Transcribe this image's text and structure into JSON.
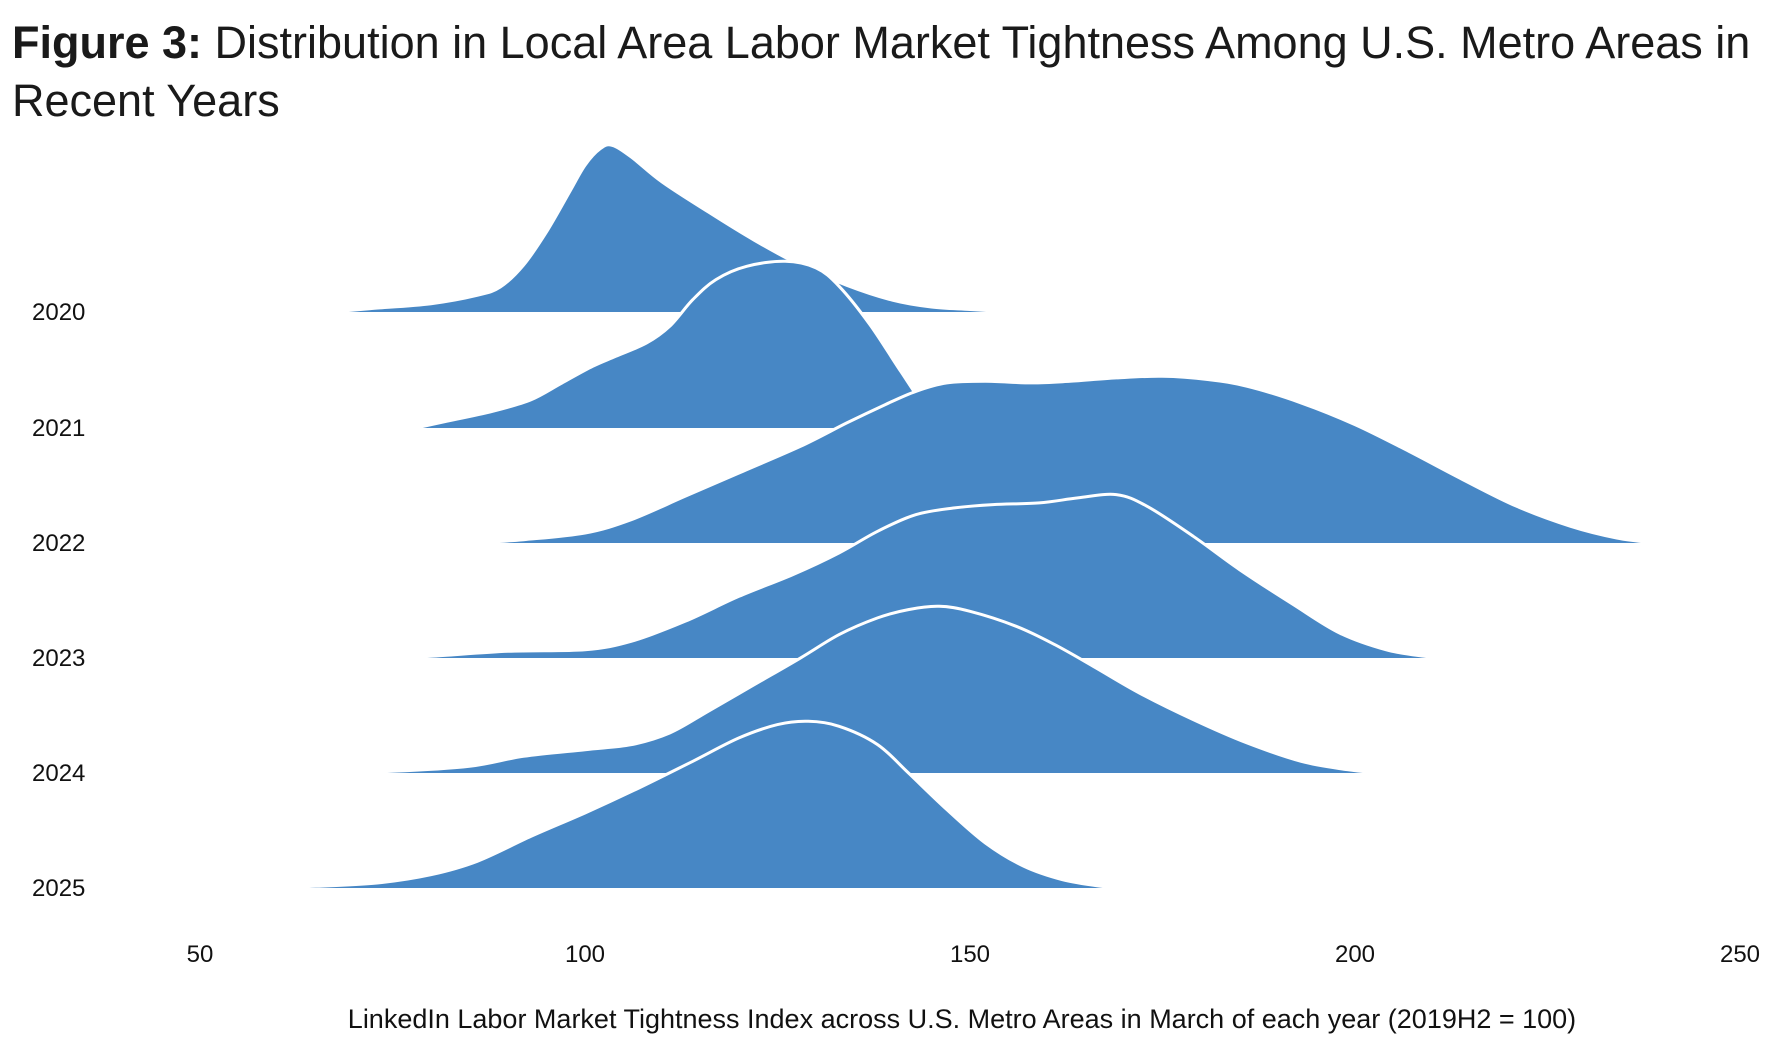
{
  "header": {
    "title_lead": "Figure 3:",
    "title_rest": " Distribution in Local Area Labor Market Tightness Among U.S. Metro Areas in Recent Years"
  },
  "chart_data": {
    "type": "ridgeline",
    "title": "Figure 3: Distribution in Local Area Labor Market Tightness Among U.S. Metro Areas in Recent Years",
    "xlabel": "LinkedIn Labor Market Tightness Index across U.S. Metro Areas in March of each year (2019H2 = 100)",
    "ylabel": "",
    "xlim": [
      50,
      250
    ],
    "x_ticks": [
      50,
      100,
      150,
      200,
      250
    ],
    "fill_color": "#4787c5",
    "outline_color": "#ffffff",
    "grid": false,
    "series": [
      {
        "name": "2020",
        "points": [
          [
            67,
            0
          ],
          [
            72,
            0.02
          ],
          [
            80,
            0.05
          ],
          [
            86,
            0.1
          ],
          [
            89,
            0.15
          ],
          [
            92,
            0.28
          ],
          [
            95,
            0.48
          ],
          [
            98,
            0.72
          ],
          [
            100,
            0.88
          ],
          [
            102,
            0.98
          ],
          [
            103.5,
            1.0
          ],
          [
            106,
            0.93
          ],
          [
            110,
            0.78
          ],
          [
            116,
            0.6
          ],
          [
            122,
            0.43
          ],
          [
            128,
            0.28
          ],
          [
            134,
            0.16
          ],
          [
            140,
            0.07
          ],
          [
            145,
            0.03
          ],
          [
            150,
            0.015
          ],
          [
            155,
            0
          ]
        ]
      },
      {
        "name": "2021",
        "points": [
          [
            78,
            0
          ],
          [
            82,
            0.04
          ],
          [
            88,
            0.1
          ],
          [
            93,
            0.17
          ],
          [
            97,
            0.27
          ],
          [
            101,
            0.37
          ],
          [
            104,
            0.43
          ],
          [
            108,
            0.51
          ],
          [
            111,
            0.61
          ],
          [
            114,
            0.77
          ],
          [
            117,
            0.89
          ],
          [
            121,
            0.97
          ],
          [
            126,
            1.0
          ],
          [
            130,
            0.96
          ],
          [
            133,
            0.85
          ],
          [
            137,
            0.62
          ],
          [
            141,
            0.34
          ],
          [
            144,
            0.14
          ],
          [
            147,
            0.02
          ],
          [
            148.5,
            0
          ]
        ]
      },
      {
        "name": "2022",
        "points": [
          [
            86,
            0
          ],
          [
            92,
            0.02
          ],
          [
            100,
            0.06
          ],
          [
            106,
            0.14
          ],
          [
            113,
            0.28
          ],
          [
            120,
            0.42
          ],
          [
            128,
            0.58
          ],
          [
            134,
            0.72
          ],
          [
            139,
            0.83
          ],
          [
            143,
            0.91
          ],
          [
            147,
            0.96
          ],
          [
            152,
            0.97
          ],
          [
            158,
            0.96
          ],
          [
            163,
            0.97
          ],
          [
            169,
            0.99
          ],
          [
            175,
            1.0
          ],
          [
            181,
            0.98
          ],
          [
            186,
            0.94
          ],
          [
            193,
            0.84
          ],
          [
            200,
            0.71
          ],
          [
            207,
            0.55
          ],
          [
            214,
            0.38
          ],
          [
            221,
            0.22
          ],
          [
            228,
            0.1
          ],
          [
            234,
            0.03
          ],
          [
            239,
            0
          ]
        ]
      },
      {
        "name": "2023",
        "points": [
          [
            74,
            0
          ],
          [
            80,
            0.01
          ],
          [
            90,
            0.04
          ],
          [
            100,
            0.05
          ],
          [
            106,
            0.1
          ],
          [
            113,
            0.22
          ],
          [
            120,
            0.37
          ],
          [
            127,
            0.5
          ],
          [
            133,
            0.63
          ],
          [
            138,
            0.76
          ],
          [
            143,
            0.86
          ],
          [
            148,
            0.9
          ],
          [
            153,
            0.92
          ],
          [
            159,
            0.93
          ],
          [
            164,
            0.96
          ],
          [
            169,
            0.98
          ],
          [
            173,
            0.91
          ],
          [
            179,
            0.73
          ],
          [
            185,
            0.53
          ],
          [
            192,
            0.32
          ],
          [
            198,
            0.15
          ],
          [
            204,
            0.05
          ],
          [
            209,
            0.01
          ],
          [
            212,
            0
          ]
        ]
      },
      {
        "name": "2024",
        "points": [
          [
            64,
            0
          ],
          [
            75,
            0.01
          ],
          [
            85,
            0.04
          ],
          [
            92,
            0.1
          ],
          [
            100,
            0.14
          ],
          [
            106,
            0.17
          ],
          [
            111,
            0.24
          ],
          [
            116,
            0.37
          ],
          [
            122,
            0.53
          ],
          [
            128,
            0.69
          ],
          [
            133,
            0.83
          ],
          [
            138,
            0.93
          ],
          [
            142,
            0.98
          ],
          [
            146,
            1.0
          ],
          [
            150,
            0.97
          ],
          [
            156,
            0.88
          ],
          [
            161,
            0.77
          ],
          [
            166,
            0.64
          ],
          [
            172,
            0.48
          ],
          [
            179,
            0.32
          ],
          [
            186,
            0.18
          ],
          [
            193,
            0.07
          ],
          [
            199,
            0.02
          ],
          [
            203,
            0
          ]
        ]
      },
      {
        "name": "2025",
        "points": [
          [
            57,
            0
          ],
          [
            65,
            0.01
          ],
          [
            73,
            0.03
          ],
          [
            80,
            0.08
          ],
          [
            86,
            0.16
          ],
          [
            93,
            0.31
          ],
          [
            100,
            0.45
          ],
          [
            107,
            0.6
          ],
          [
            114,
            0.76
          ],
          [
            120,
            0.9
          ],
          [
            125,
            0.98
          ],
          [
            129,
            1.0
          ],
          [
            133,
            0.97
          ],
          [
            138,
            0.86
          ],
          [
            142,
            0.69
          ],
          [
            147,
            0.47
          ],
          [
            152,
            0.27
          ],
          [
            157,
            0.13
          ],
          [
            162,
            0.05
          ],
          [
            167,
            0.01
          ],
          [
            170,
            0
          ]
        ]
      }
    ],
    "peak_heights_relative": [
      1.45,
      1.45,
      1.45,
      1.45,
      1.45,
      1.45
    ],
    "year_labels": [
      "2020",
      "2021",
      "2022",
      "2023",
      "2024",
      "2025"
    ]
  }
}
